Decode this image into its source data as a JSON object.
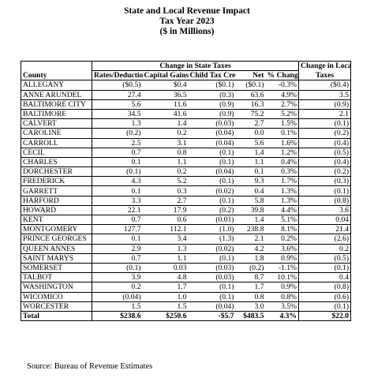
{
  "title": {
    "line1": "State and Local Revenue Impact",
    "line2": "Tax Year 2023",
    "line3": "($ in Millions)"
  },
  "headers": {
    "group_state": "Change in State Taxes",
    "group_local_line1": "Change in Local",
    "group_local_line2": "Taxes",
    "county": "County",
    "rates": "Rates/Deductions",
    "capital": "Capital Gains",
    "child": "Child Tax Credit",
    "net": "Net",
    "pct": "% Change"
  },
  "rows": [
    {
      "county": "ALLEGANY",
      "rates": "($0.5)",
      "capital": "$0.4",
      "child": "($0.1)",
      "net": "($0.1)",
      "pct": "-0.3%",
      "local": "($0.4)"
    },
    {
      "county": "ANNE ARUNDEL",
      "rates": "27.4",
      "capital": "36.5",
      "child": "(0.3)",
      "net": "63.6",
      "pct": "4.9%",
      "local": "3.5"
    },
    {
      "county": "BALTIMORE CITY",
      "rates": "5.6",
      "capital": "11.6",
      "child": "(0.9)",
      "net": "16.3",
      "pct": "2.7%",
      "local": "(0.9)"
    },
    {
      "county": "BALTIMORE",
      "rates": "34.5",
      "capital": "41.6",
      "child": "(0.9)",
      "net": "75.2",
      "pct": "5.2%",
      "local": "2.1"
    },
    {
      "county": "CALVERT",
      "rates": "1.3",
      "capital": "1.4",
      "child": "(0.03)",
      "net": "2.7",
      "pct": "1.5%",
      "local": "(0.1)"
    },
    {
      "county": "CAROLINE",
      "rates": "(0.2)",
      "capital": "0.2",
      "child": "(0.04)",
      "net": "0.0",
      "pct": "0.1%",
      "local": "(0.2)"
    },
    {
      "county": "CARROLL",
      "rates": "2.5",
      "capital": "3.1",
      "child": "(0.04)",
      "net": "5.6",
      "pct": "1.6%",
      "local": "(0.4)"
    },
    {
      "county": "CECIL",
      "rates": "0.7",
      "capital": "0.8",
      "child": "(0.1)",
      "net": "1.4",
      "pct": "1.2%",
      "local": "(0.5)"
    },
    {
      "county": "CHARLES",
      "rates": "0.1",
      "capital": "1.1",
      "child": "(0.1)",
      "net": "1.1",
      "pct": "0.4%",
      "local": "(0.4)"
    },
    {
      "county": "DORCHESTER",
      "rates": "(0.1)",
      "capital": "0.2",
      "child": "(0.04)",
      "net": "0.1",
      "pct": "0.3%",
      "local": "(0.2)"
    },
    {
      "county": "FREDERICK",
      "rates": "4.3",
      "capital": "5.2",
      "child": "(0.1)",
      "net": "9.3",
      "pct": "1.7%",
      "local": "(0.3)"
    },
    {
      "county": "GARRETT",
      "rates": "0.1",
      "capital": "0.3",
      "child": "(0.02)",
      "net": "0.4",
      "pct": "1.3%",
      "local": "(0.1)"
    },
    {
      "county": "HARFORD",
      "rates": "3.3",
      "capital": "2.7",
      "child": "(0.1)",
      "net": "5.8",
      "pct": "1.3%",
      "local": "(0.8)"
    },
    {
      "county": "HOWARD",
      "rates": "22.1",
      "capital": "17.9",
      "child": "(0.2)",
      "net": "39.8",
      "pct": "4.4%",
      "local": "3.6"
    },
    {
      "county": "KENT",
      "rates": "0.7",
      "capital": "0.6",
      "child": "(0.01)",
      "net": "1.4",
      "pct": "5.1%",
      "local": "0.04"
    },
    {
      "county": "MONTGOMERY",
      "rates": "127.7",
      "capital": "112.1",
      "child": "(1.0)",
      "net": "238.8",
      "pct": "8.1%",
      "local": "21.4"
    },
    {
      "county": "PRINCE GEORGES",
      "rates": "0.1",
      "capital": "3.4",
      "child": "(1.3)",
      "net": "2.1",
      "pct": "0.2%",
      "local": "(2.6)"
    },
    {
      "county": "QUEEN ANNES",
      "rates": "2.9",
      "capital": "1.3",
      "child": "(0.02)",
      "net": "4.2",
      "pct": "3.6%",
      "local": "0.2"
    },
    {
      "county": "SAINT MARYS",
      "rates": "0.7",
      "capital": "1.1",
      "child": "(0.1)",
      "net": "1.8",
      "pct": "0.9%",
      "local": "(0.5)"
    },
    {
      "county": "SOMERSET",
      "rates": "(0.1)",
      "capital": "0.03",
      "child": "(0.03)",
      "net": "(0.2)",
      "pct": "-1.1%",
      "local": "(0.1)"
    },
    {
      "county": "TALBOT",
      "rates": "3.9",
      "capital": "4.8",
      "child": "(0.03)",
      "net": "8.7",
      "pct": "10.1%",
      "local": "0.4"
    },
    {
      "county": "WASHINGTON",
      "rates": "0.2",
      "capital": "1.7",
      "child": "(0.1)",
      "net": "1.7",
      "pct": "0.9%",
      "local": "(0.8)"
    },
    {
      "county": "WICOMICO",
      "rates": "(0.04)",
      "capital": "1.0",
      "child": "(0.1)",
      "net": "0.8",
      "pct": "0.8%",
      "local": "(0.6)"
    },
    {
      "county": "WORCESTER",
      "rates": "1.5",
      "capital": "1.5",
      "child": "(0.04)",
      "net": "3.0",
      "pct": "3.5%",
      "local": "(0.1)"
    }
  ],
  "total": {
    "county": "Total",
    "rates": "$238.6",
    "capital": "$250.6",
    "child": "-$5.7",
    "net": "$483.5",
    "pct": "4.3%",
    "local": "$22.0"
  },
  "source": "Source: Bureau of Revenue Estimates"
}
